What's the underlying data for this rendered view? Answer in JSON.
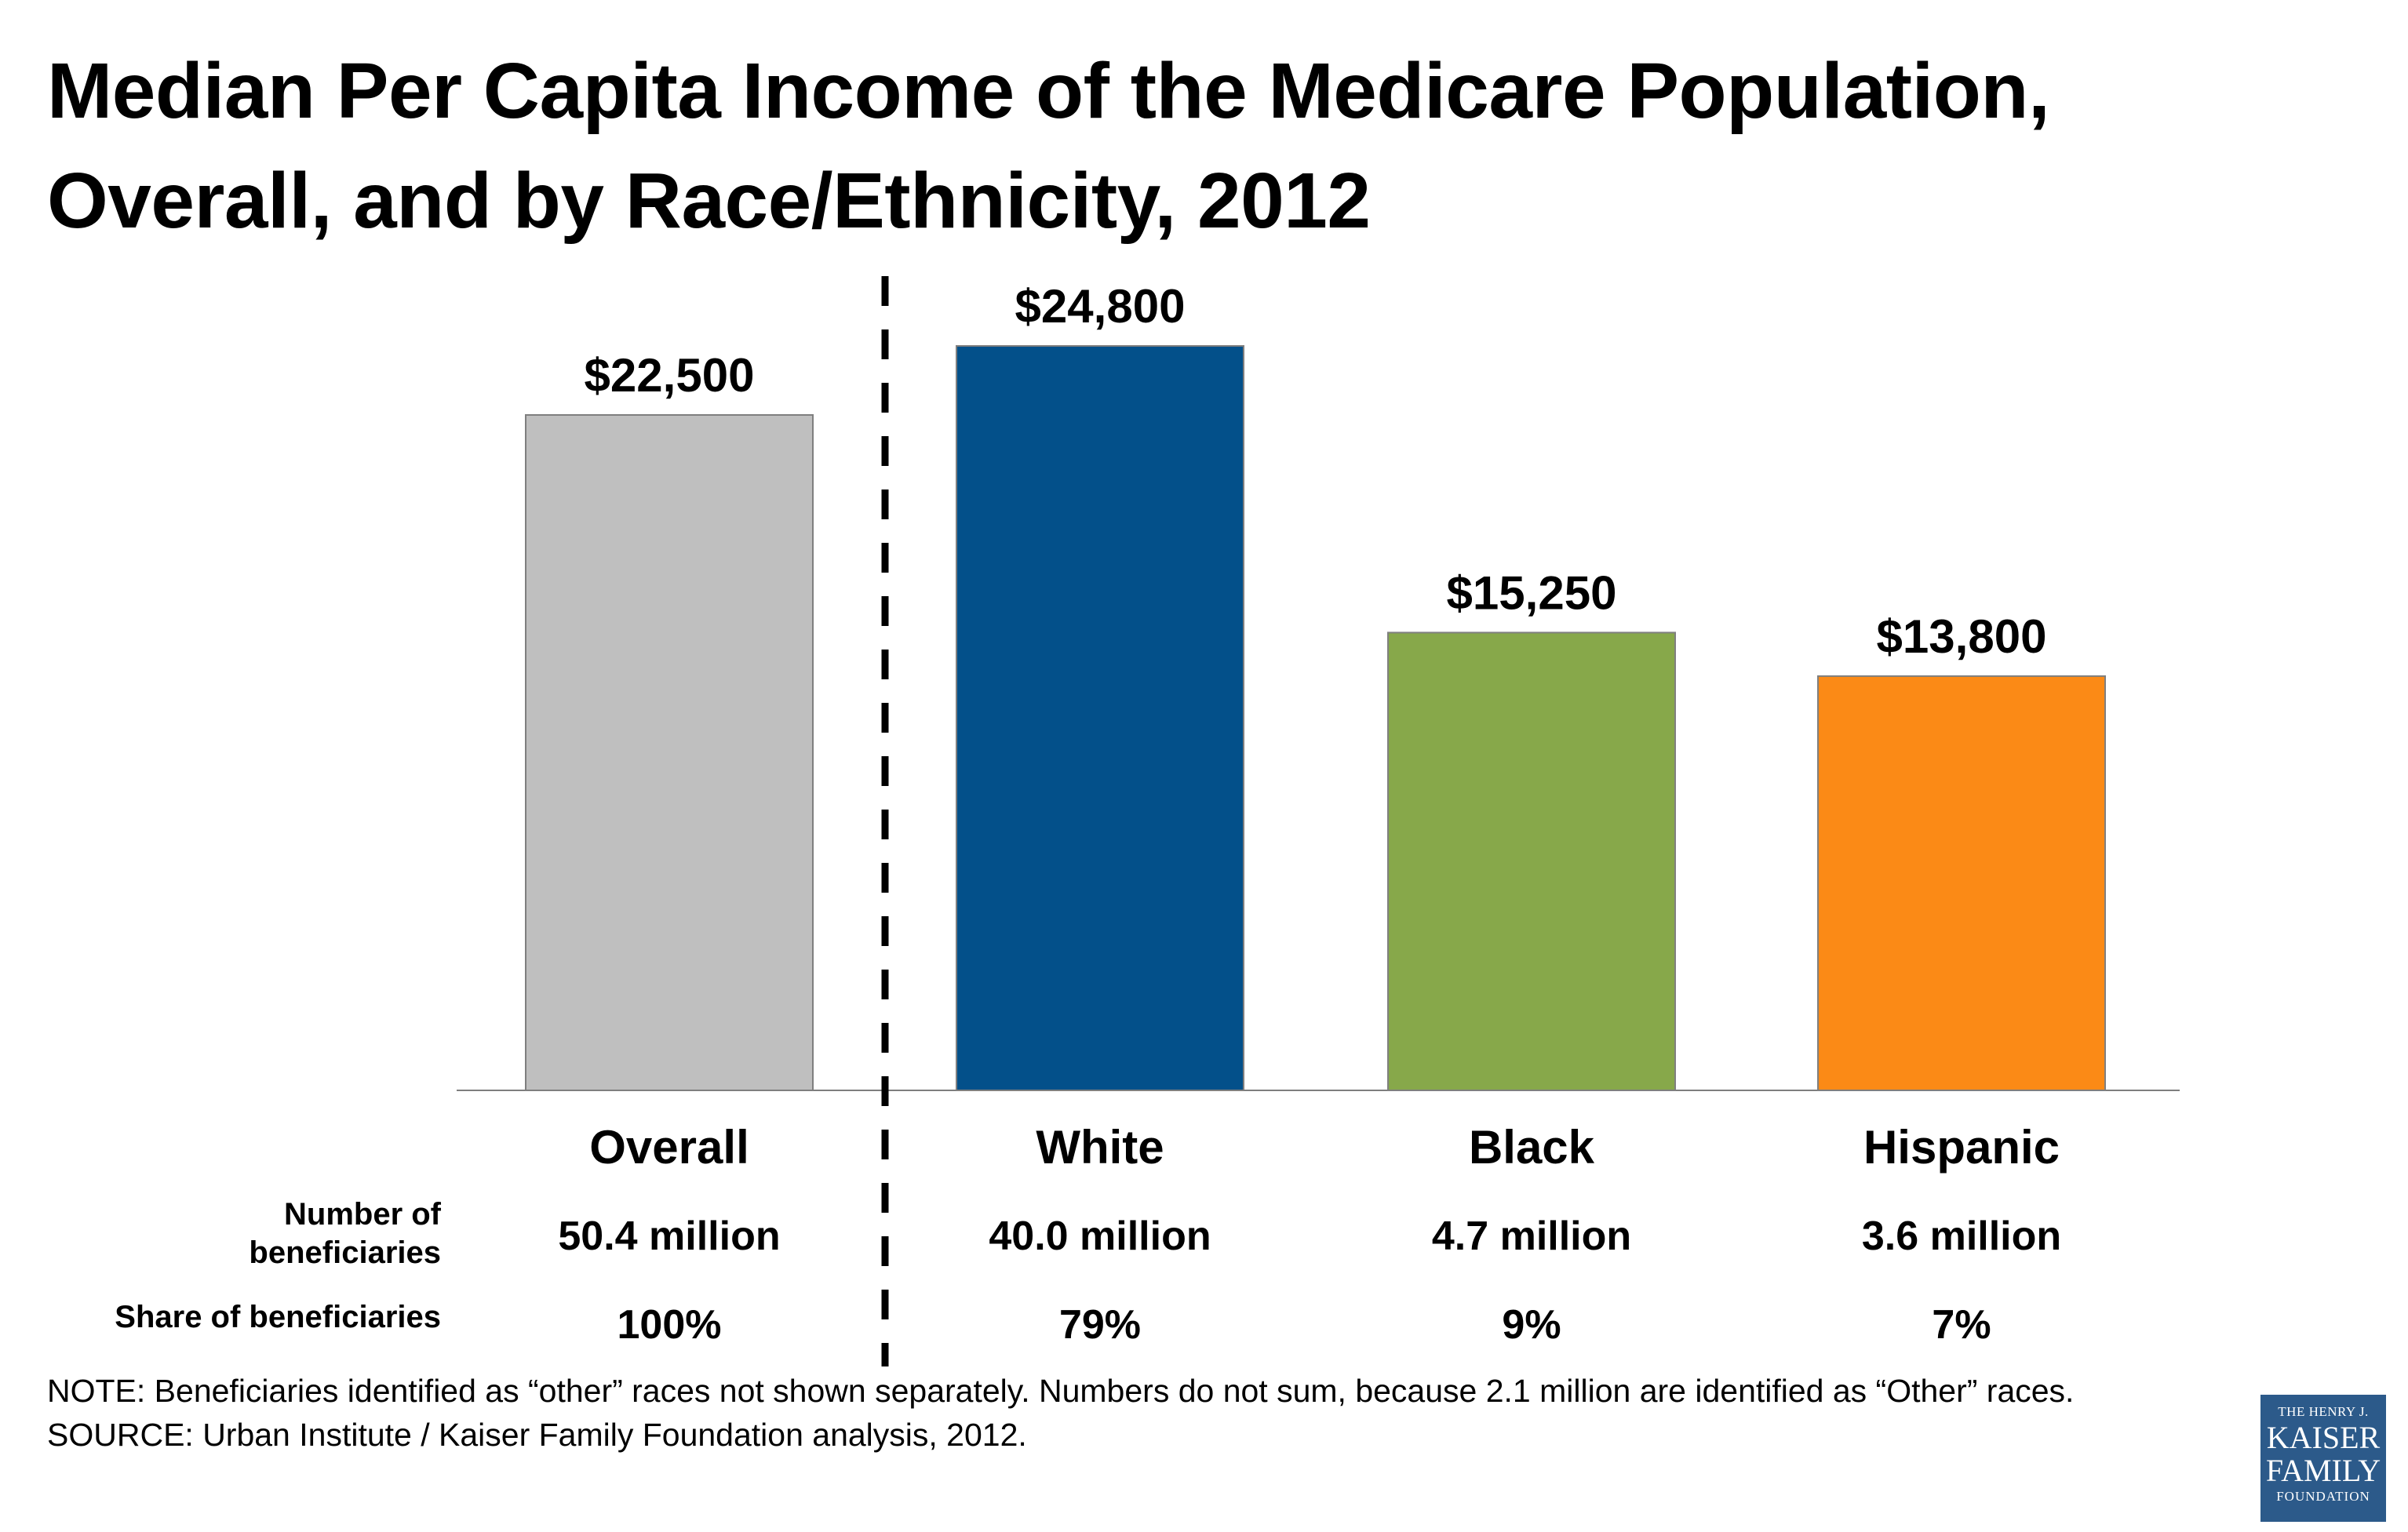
{
  "title_lines": [
    "Median Per Capita Income of the Medicare Population,",
    "Overall, and by Race/Ethnicity, 2012"
  ],
  "chart_data": {
    "type": "bar",
    "categories": [
      "Overall",
      "White",
      "Black",
      "Hispanic"
    ],
    "values": [
      22500,
      24800,
      15250,
      13800
    ],
    "value_labels": [
      "$22,500",
      "$24,800",
      "$15,250",
      "$13,800"
    ],
    "colors": [
      "#bfbfbf",
      "#03508a",
      "#87a84a",
      "#fb8a16"
    ],
    "ylim": [
      0,
      28000
    ],
    "grid": false,
    "separator": "dashed vertical line between Overall and White"
  },
  "table": {
    "rows": [
      {
        "label_lines": [
          "Number of",
          "beneficiaries"
        ],
        "values": [
          "50.4 million",
          "40.0 million",
          "4.7 million",
          "3.6 million"
        ]
      },
      {
        "label_lines": [
          "Share of beneficiaries"
        ],
        "values": [
          "100%",
          "79%",
          "9%",
          "7%"
        ]
      }
    ]
  },
  "footnote": {
    "note": "NOTE: Beneficiaries identified as “other” races not shown separately.  Numbers do not sum, because 2.1 million are identified as “Other” races.",
    "source": "SOURCE: Urban Institute / Kaiser Family Foundation analysis, 2012."
  },
  "logo": {
    "line1": "THE HENRY J.",
    "line2": "KAISER",
    "line3": "FAMILY",
    "line4": "FOUNDATION"
  }
}
